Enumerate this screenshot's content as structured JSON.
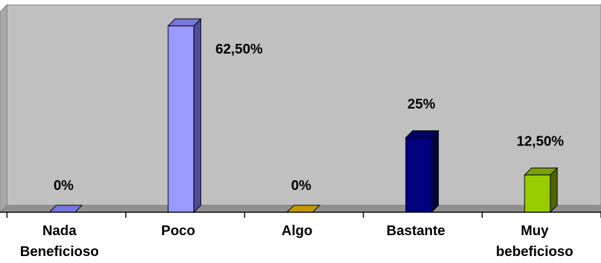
{
  "chart_data": {
    "type": "bar",
    "three_d": true,
    "grid": false,
    "legend": "none",
    "categories": [
      "Nada Beneficioso",
      "Poco",
      "Algo",
      "Bastante",
      "Muy bebeficioso"
    ],
    "category_lines": [
      [
        "Nada",
        "Beneficioso"
      ],
      [
        "Poco"
      ],
      [
        "Algo"
      ],
      [
        "Bastante"
      ],
      [
        "Muy",
        "bebeficioso"
      ]
    ],
    "values": [
      0,
      62.5,
      0,
      25,
      12.5
    ],
    "data_labels": [
      "0%",
      "62,50%",
      "0%",
      "25%",
      "12,50%"
    ],
    "ylim": [
      0,
      70
    ],
    "colors": {
      "plot_background": "#c0c0c0",
      "bars": [
        "#9999ff",
        "#9999ff",
        "#ffcc00",
        "#000080",
        "#99cc00"
      ],
      "bars_side": [
        "#4d4d99",
        "#4d4d99",
        "#8a6d00",
        "#000040",
        "#4d6600"
      ],
      "bars_top": [
        "#7777dd",
        "#7777dd",
        "#c29a00",
        "#000060",
        "#77a000"
      ]
    }
  }
}
